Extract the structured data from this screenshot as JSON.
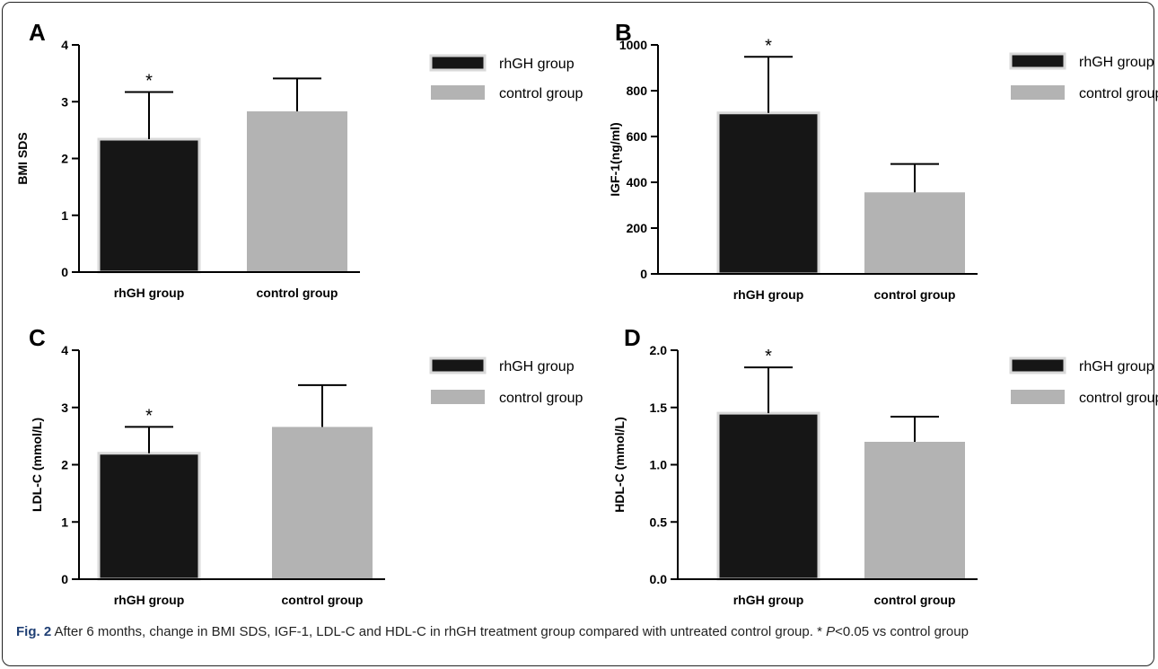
{
  "caption": {
    "label": "Fig. 2",
    "text": " After 6 months, change in BMI SDS, IGF-1, LDL-C and HDL-C in rhGH treatment group compared with untreated control group. *",
    "p": "P",
    "tail": "<0.05 vs control group"
  },
  "colors": {
    "rhgh": "#161616",
    "control": "#b3b3b3",
    "axis": "#000000"
  },
  "chart_data": [
    {
      "panel": "A",
      "type": "bar",
      "ylabel": "BMI SDS",
      "categories": [
        "rhGH group",
        "control group"
      ],
      "values": [
        2.34,
        2.83
      ],
      "errors": [
        0.83,
        0.58
      ],
      "significance": [
        "*",
        ""
      ],
      "ylim": [
        0,
        4
      ],
      "yticks": [
        "0",
        "1",
        "2",
        "3",
        "4"
      ],
      "legend": [
        "rhGH group",
        "control group"
      ],
      "legend_position": "right"
    },
    {
      "panel": "B",
      "type": "bar",
      "ylabel": "IGF-1(ng/ml)",
      "categories": [
        "rhGH group",
        "control group"
      ],
      "values": [
        703,
        356
      ],
      "errors": [
        245,
        124
      ],
      "significance": [
        "*",
        ""
      ],
      "ylim": [
        0,
        1000
      ],
      "yticks": [
        "0",
        "200",
        "400",
        "600",
        "800",
        "1000"
      ],
      "legend": [
        "rhGH group",
        "control group"
      ],
      "legend_position": "right"
    },
    {
      "panel": "C",
      "type": "bar",
      "ylabel": "LDL-C (mmol/L)",
      "categories": [
        "rhGH group",
        "control group"
      ],
      "values": [
        2.2,
        2.66
      ],
      "errors": [
        0.46,
        0.73
      ],
      "significance": [
        "*",
        ""
      ],
      "ylim": [
        0,
        4
      ],
      "yticks": [
        "0",
        "1",
        "2",
        "3",
        "4"
      ],
      "legend": [
        "rhGH group",
        "control group"
      ],
      "legend_position": "right"
    },
    {
      "panel": "D",
      "type": "bar",
      "ylabel": "HDL-C (mmol/L)",
      "categories": [
        "rhGH group",
        "control group"
      ],
      "values": [
        1.45,
        1.2
      ],
      "errors": [
        0.4,
        0.22
      ],
      "significance": [
        "*",
        ""
      ],
      "ylim": [
        0,
        2
      ],
      "yticks": [
        "0.0",
        "0.5",
        "1.0",
        "1.5",
        "2.0"
      ],
      "legend": [
        "rhGH group",
        "control group"
      ],
      "legend_position": "right"
    }
  ]
}
